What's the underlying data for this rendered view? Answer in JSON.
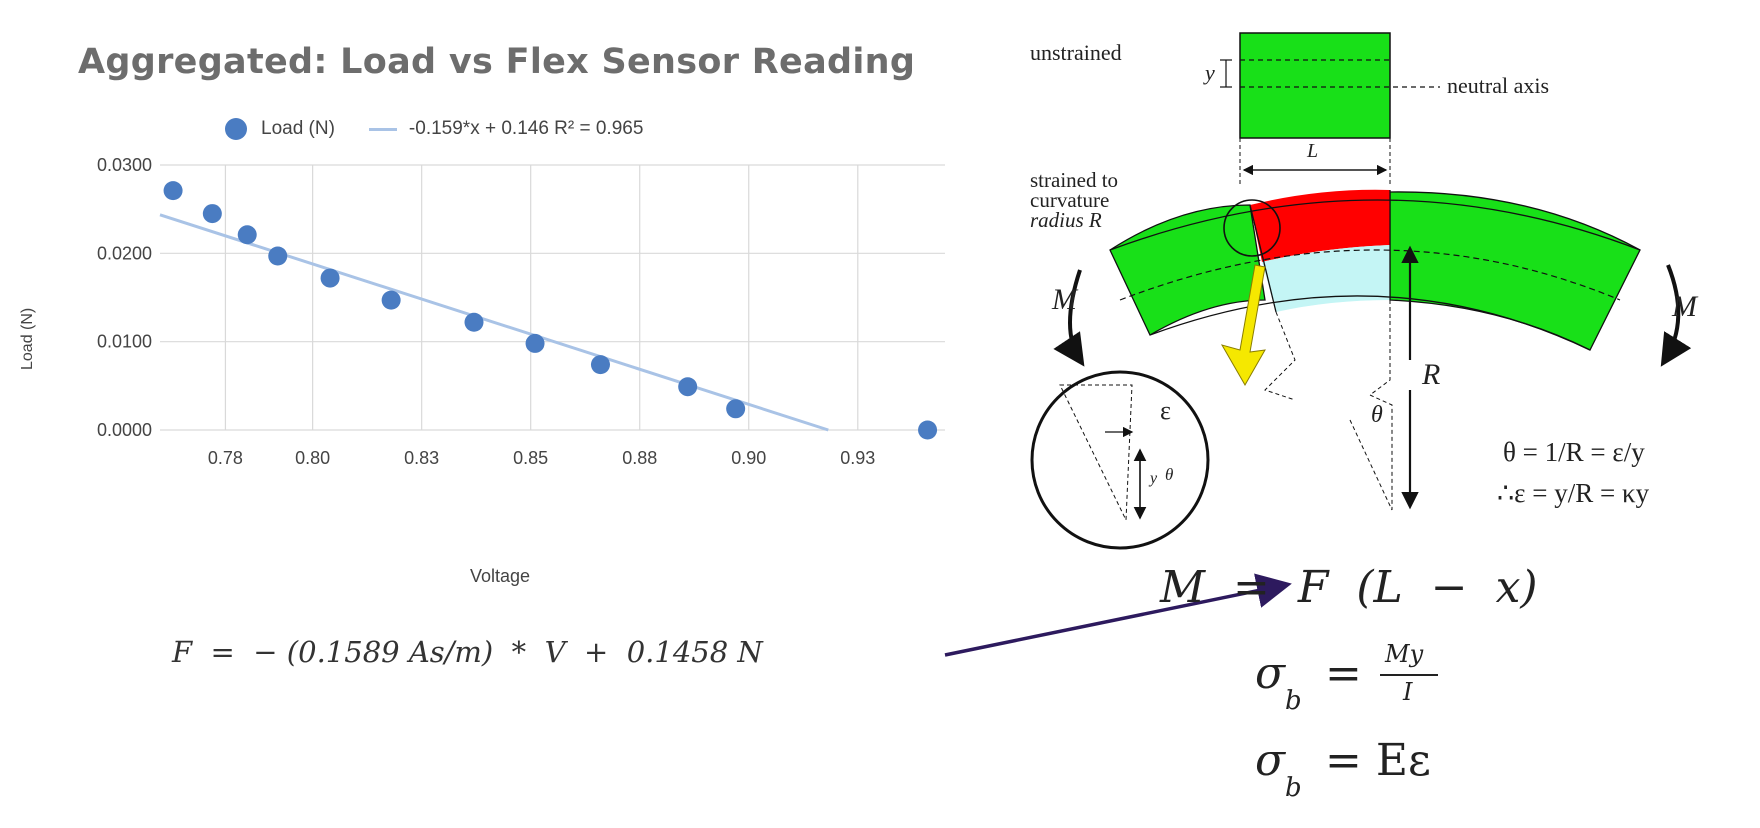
{
  "chart_data": {
    "type": "scatter",
    "title": "Aggregated: Load vs Flex Sensor Reading",
    "xlabel": "Voltage",
    "ylabel": "Load (N)",
    "xlim": [
      0.765,
      0.945
    ],
    "ylim": [
      0,
      0.03
    ],
    "grid": true,
    "legend_position": "top-center",
    "x_ticks": [
      "0.78",
      "0.80",
      "0.83",
      "0.85",
      "0.88",
      "0.90",
      "0.93"
    ],
    "x_tick_values": [
      0.78,
      0.8,
      0.825,
      0.85,
      0.875,
      0.9,
      0.925
    ],
    "y_ticks": [
      "0.0000",
      "0.0100",
      "0.0200",
      "0.0300"
    ],
    "y_tick_values": [
      0,
      0.01,
      0.02,
      0.03
    ],
    "series": [
      {
        "name": "Load (N)",
        "kind": "points",
        "x": [
          0.768,
          0.777,
          0.785,
          0.792,
          0.804,
          0.818,
          0.837,
          0.851,
          0.866,
          0.886,
          0.897,
          0.941
        ],
        "y": [
          0.0271,
          0.0245,
          0.0221,
          0.0197,
          0.0172,
          0.0147,
          0.0122,
          0.0098,
          0.0074,
          0.0049,
          0.0024,
          0.0
        ]
      },
      {
        "name": "-0.159*x + 0.146 R² = 0.965",
        "kind": "trendline",
        "slope": -0.159,
        "intercept": 0.146
      }
    ],
    "colors": {
      "points": "#4a7cc2",
      "trendline": "#a9c3e6",
      "grid": "#d9d9d9"
    }
  },
  "legend": {
    "points_label": "Load (N)",
    "trend_label": "-0.159*x + 0.146 R² = 0.965"
  },
  "formula_left": {
    "text": "F  =  − (0.1589 As/m)  *  V  +  0.1458 N"
  },
  "diagram": {
    "unstrained_label": "unstrained",
    "y_label": "y",
    "neutral_axis_label": "neutral axis",
    "L_label": "L",
    "strained_line1": "strained to",
    "strained_line2": "curvature",
    "strained_line3": "radius R",
    "M_left": "M",
    "M_right": "M",
    "R_label": "R",
    "theta_label": "θ",
    "epsilon_label": "ε",
    "inset_theta": "θ",
    "inset_y": "y",
    "eq1": "θ = 1/R = ε/y",
    "eq2": "∴ε = y/R = κy",
    "colors": {
      "green": "#18e018",
      "red": "#ff0000",
      "cyan": "#c4f5f5",
      "yellow": "#f5e800",
      "arrow": "#2d1a5e"
    }
  },
  "equations": {
    "moment": "M  =  F  (L  −  x)",
    "sigma_my_lhs": "σ",
    "sigma_sub": "b",
    "sigma_my_eq": "=",
    "sigma_my_num": "My",
    "sigma_my_den": "I",
    "sigma_e_rhs": "= Eε"
  }
}
